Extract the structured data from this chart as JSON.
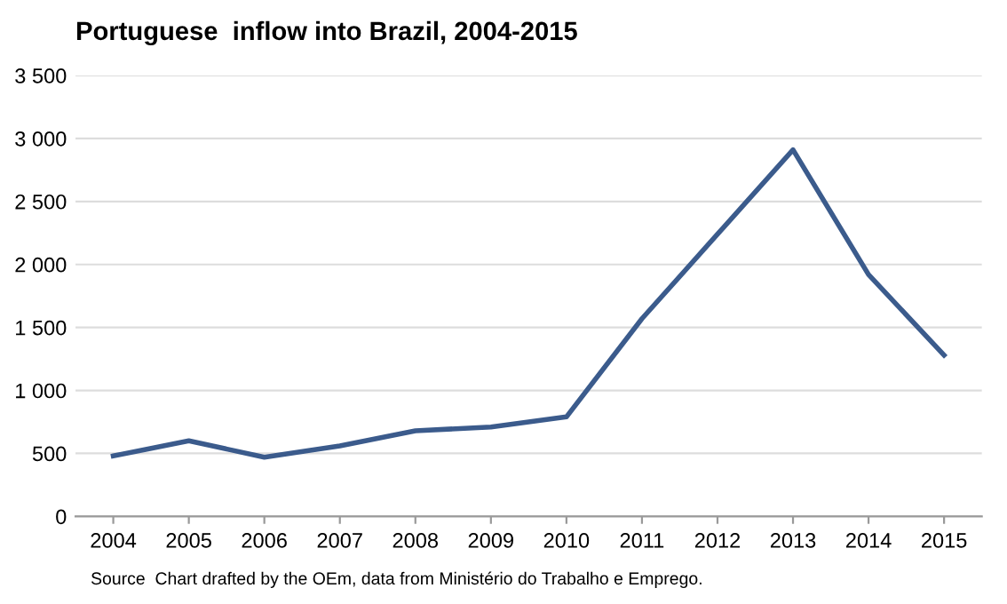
{
  "chart_data": {
    "type": "line",
    "title": "Portuguese  inflow into Brazil, 2004-2015",
    "categories": [
      "2004",
      "2005",
      "2006",
      "2007",
      "2008",
      "2009",
      "2010",
      "2011",
      "2012",
      "2013",
      "2014",
      "2015"
    ],
    "series": [
      {
        "color": "#3b5b8c",
        "values": [
          480,
          600,
          470,
          560,
          680,
          710,
          790,
          1570,
          2240,
          2910,
          1920,
          1280
        ]
      }
    ],
    "ylim": [
      0,
      3500
    ],
    "yticks": [
      0,
      {
        "value": 500,
        "label": "500"
      },
      {
        "value": 1000,
        "label": "1 000"
      },
      {
        "value": 1500,
        "label": "1 500"
      },
      {
        "value": 2000,
        "label": "2 000"
      },
      {
        "value": 2500,
        "label": "2 500"
      },
      {
        "value": 3000,
        "label": "3 000"
      },
      {
        "value": 3500,
        "label": "3 500"
      }
    ],
    "grid": "y",
    "legend": false,
    "marker": "none",
    "line_style": "solid",
    "annotations": [
      "Source  Chart drafted by the OEm, data from Ministério do Trabalho e Emprego."
    ]
  }
}
